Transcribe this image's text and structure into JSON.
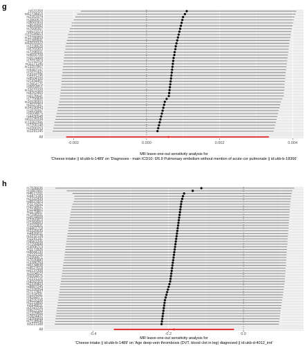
{
  "chart_data": [
    {
      "panel": "g",
      "type": "forest",
      "xlabel_line1": "MR leave-one-out sensitivity analysis for",
      "xlabel_line2": "'Cheese intake || id:ukb-b-1489' on 'Diagnoses - main ICD10: I26.9 Pulmonary embolism without mention of acute cor pulmonale || id:ukb-b-18366'",
      "xlim": [
        -0.0028,
        0.0043
      ],
      "xticks": [
        -0.002,
        0.0,
        0.002,
        0.004
      ],
      "xtick_labels": [
        "-0.002",
        "0.000",
        "0.002",
        "0.004"
      ],
      "reference_x": 0,
      "snps": [
        "rs531358",
        "rs61734410",
        "rs2352974",
        "rs2860578",
        "rs8060304",
        "rs8649582",
        "rs7668367",
        "rs6521073",
        "rs11549653",
        "rs12786859",
        "rs11389941",
        "rs62033322",
        "rs2238528",
        "rs6703303",
        "rs7298331",
        "rs4656708",
        "rs5524468",
        "rs7012814",
        "rs11171145",
        "rs13207867",
        "rs9387147",
        "rs1072442",
        "rs4491196",
        "rs8504100",
        "rs1434451",
        "rs2864175",
        "rs6654651",
        "rs12672320",
        "rs8252460",
        "rs6126641",
        "rs7756806",
        "rs10928303",
        "rs2527357",
        "rs34196843",
        "rs1878397",
        "rs5004875",
        "rs4436548",
        "rs61125334",
        "rs13362366",
        "rs7256148",
        "rs2200153",
        "rs1291145"
      ],
      "estimates": [
        0.0011,
        0.00105,
        0.001,
        0.00098,
        0.00096,
        0.00094,
        0.00092,
        0.0009,
        0.00088,
        0.00086,
        0.00084,
        0.00082,
        0.0008,
        0.00079,
        0.00077,
        0.00076,
        0.00074,
        0.00073,
        0.00072,
        0.00071,
        0.0007,
        0.00069,
        0.00068,
        0.00067,
        0.00066,
        0.00065,
        0.00064,
        0.00063,
        0.00062,
        0.00061,
        0.00055,
        0.0005,
        0.00048,
        0.00046,
        0.00044,
        0.00042,
        0.0004,
        0.00038,
        0.00036,
        0.00034,
        0.00032,
        0.0003
      ],
      "ci_lower": [
        -0.0018,
        -0.0019,
        -0.00195,
        -0.002,
        -0.00205,
        -0.00205,
        -0.0021,
        -0.00212,
        -0.00215,
        -0.00215,
        -0.00218,
        -0.0022,
        -0.00222,
        -0.00222,
        -0.00225,
        -0.00225,
        -0.00226,
        -0.00227,
        -0.00228,
        -0.00229,
        -0.0023,
        -0.0023,
        -0.00232,
        -0.00232,
        -0.00233,
        -0.00233,
        -0.00234,
        -0.00235,
        -0.00236,
        -0.00237,
        -0.00238,
        -0.0024,
        -0.00241,
        -0.00243,
        -0.00244,
        -0.00246,
        -0.00248,
        -0.0025,
        -0.00252,
        -0.00253,
        -0.00255,
        -0.00257
      ],
      "ci_upper": [
        0.0041,
        0.00408,
        0.00405,
        0.00403,
        0.00402,
        0.004,
        0.00398,
        0.00396,
        0.00395,
        0.00394,
        0.00392,
        0.00391,
        0.0039,
        0.00389,
        0.00388,
        0.00387,
        0.00386,
        0.00385,
        0.00384,
        0.00383,
        0.00382,
        0.00381,
        0.0038,
        0.0038,
        0.00379,
        0.00378,
        0.00378,
        0.00377,
        0.00376,
        0.00376,
        0.00372,
        0.00368,
        0.00366,
        0.00364,
        0.00362,
        0.0036,
        0.00358,
        0.00356,
        0.00354,
        0.00352,
        0.0035,
        0.00348
      ],
      "all": {
        "label": "All",
        "estimate": 0.0006,
        "ci_lower": -0.0022,
        "ci_upper": 0.00335
      }
    },
    {
      "panel": "h",
      "type": "forest",
      "xlabel_line1": "MR leave-one-out sensitivity analysis for",
      "xlabel_line2": "'Cheese intake || id:ukb-b-1489' on 'Age deep-vein thrombosis (DVT, blood clot in leg) diagnosed || id:ukb-d-4012_irnt'",
      "xlim": [
        -0.53,
        0.16
      ],
      "xticks": [
        -0.4,
        -0.2,
        0.0
      ],
      "xtick_labels": [
        "-0.4",
        "-0.2",
        "0.0"
      ],
      "reference_x": 0,
      "snps": [
        "rs7836636",
        "rs1887561",
        "rs4677291",
        "rs4471183",
        "rs2332439",
        "rs8827823",
        "rs1179252",
        "rs4158937",
        "rs1148662",
        "rs1179857",
        "rs7298331",
        "rs6524668",
        "rs2355813",
        "rs1384663",
        "rs1102831",
        "rs4407718",
        "rs3326635",
        "rs4826811",
        "rs2232128",
        "rs2241147",
        "rs6561335",
        "rs7256848",
        "rs3006713",
        "rs1172826",
        "rs8844130",
        "rs1101126",
        "rs2356671",
        "rs7035880",
        "rs3386254",
        "rs6134838",
        "rs4527618",
        "rs6137208",
        "rs1104572",
        "rs5004875",
        "rs2221131",
        "rs4162318",
        "rs2335803",
        "rs8807245",
        "rs1328354",
        "rs7172847",
        "rs1334281",
        "rs9244071",
        "rs4225106",
        "rs2219855",
        "rs6648811",
        "rs2241226",
        "rs4522153",
        "rs1329855",
        "rs2824402",
        "rs4356844",
        "rs7128546",
        "rs5221188"
      ],
      "estimates": [
        -0.112,
        -0.135,
        -0.158,
        -0.161,
        -0.163,
        -0.165,
        -0.166,
        -0.167,
        -0.168,
        -0.169,
        -0.17,
        -0.171,
        -0.172,
        -0.173,
        -0.174,
        -0.175,
        -0.176,
        -0.177,
        -0.178,
        -0.179,
        -0.18,
        -0.181,
        -0.182,
        -0.183,
        -0.184,
        -0.185,
        -0.186,
        -0.187,
        -0.188,
        -0.189,
        -0.19,
        -0.191,
        -0.192,
        -0.193,
        -0.194,
        -0.195,
        -0.197,
        -0.199,
        -0.201,
        -0.203,
        -0.205,
        -0.207,
        -0.209,
        -0.21,
        -0.211,
        -0.212,
        -0.213,
        -0.214,
        -0.215,
        -0.216,
        -0.217,
        -0.218
      ],
      "ci_lower": [
        -0.5,
        -0.47,
        -0.455,
        -0.45,
        -0.45,
        -0.452,
        -0.455,
        -0.457,
        -0.458,
        -0.46,
        -0.461,
        -0.462,
        -0.463,
        -0.464,
        -0.465,
        -0.466,
        -0.467,
        -0.468,
        -0.469,
        -0.47,
        -0.471,
        -0.472,
        -0.473,
        -0.474,
        -0.475,
        -0.476,
        -0.477,
        -0.478,
        -0.479,
        -0.48,
        -0.481,
        -0.482,
        -0.483,
        -0.484,
        -0.485,
        -0.486,
        -0.487,
        -0.488,
        -0.489,
        -0.49,
        -0.491,
        -0.492,
        -0.493,
        -0.494,
        -0.495,
        -0.496,
        -0.497,
        -0.498,
        -0.499,
        -0.5,
        -0.501,
        -0.502
      ],
      "ci_upper": [
        0.135,
        0.13,
        0.128,
        0.127,
        0.126,
        0.125,
        0.124,
        0.124,
        0.123,
        0.123,
        0.122,
        0.122,
        0.121,
        0.121,
        0.12,
        0.12,
        0.119,
        0.119,
        0.118,
        0.118,
        0.117,
        0.117,
        0.116,
        0.116,
        0.115,
        0.115,
        0.114,
        0.114,
        0.113,
        0.113,
        0.112,
        0.112,
        0.111,
        0.111,
        0.11,
        0.11,
        0.109,
        0.108,
        0.107,
        0.106,
        0.105,
        0.104,
        0.103,
        0.102,
        0.101,
        0.1,
        0.099,
        0.098,
        0.097,
        0.096,
        0.095,
        0.094
      ],
      "all": {
        "label": "All",
        "estimate": -0.185,
        "ci_lower": -0.345,
        "ci_upper": -0.025
      }
    }
  ],
  "colors": {
    "panel_bg": "#ebebeb",
    "grid": "#ffffff",
    "ci_line": "#7f7f7f",
    "point": "#000000",
    "all_line": "#e8272a",
    "reference": "#333333"
  }
}
